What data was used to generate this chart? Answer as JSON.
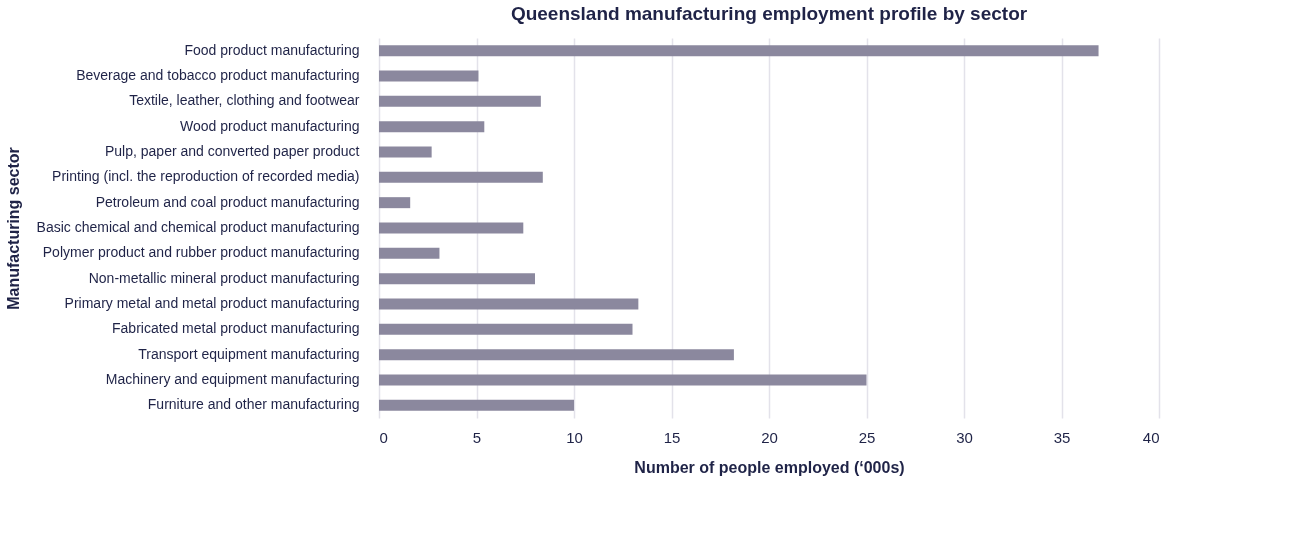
{
  "chart_data": {
    "type": "bar",
    "orientation": "horizontal",
    "title": "Queensland manufacturing employment profile by sector",
    "xlabel": "Number of people employed (‘000s)",
    "ylabel": "Manufacturing sector",
    "categories": [
      "Food product manufacturing",
      "Beverage and tobacco product manufacturing",
      "Textile, leather, clothing and footwear",
      "Wood product manufacturing",
      "Pulp, paper and converted paper product",
      "Printing (incl. the reproduction of recorded media)",
      "Petroleum and coal product manufacturing",
      "Basic chemical and chemical product manufacturing",
      "Polymer product and rubber product manufacturing",
      "Non-metallic mineral product manufacturing",
      "Primary metal and metal product manufacturing",
      "Fabricated metal product manufacturing",
      "Transport equipment manufacturing",
      "Machinery and equipment manufacturing",
      "Furniture and other manufacturing"
    ],
    "values": [
      36.9,
      5.1,
      8.3,
      5.4,
      2.7,
      8.4,
      1.6,
      7.4,
      3.1,
      8.0,
      13.3,
      13.0,
      18.2,
      25.0,
      10.0
    ],
    "color": "#8b889e",
    "xlim": [
      0,
      40
    ],
    "xticks": [
      0,
      5,
      10,
      15,
      20,
      25,
      30,
      35,
      40
    ],
    "grid": "x"
  }
}
